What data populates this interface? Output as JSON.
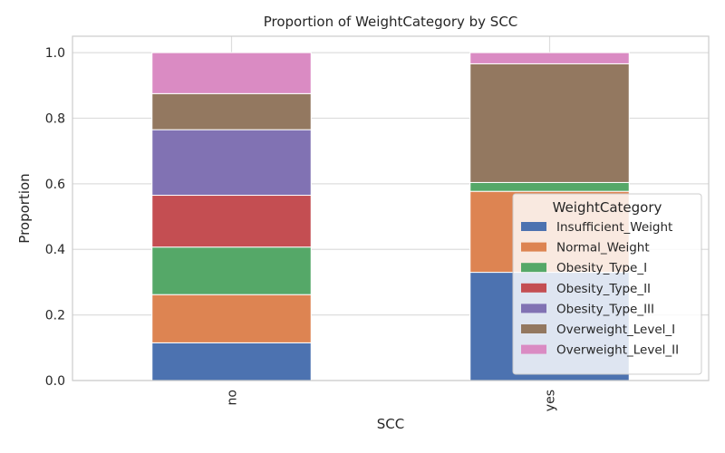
{
  "chart_data": {
    "type": "bar",
    "stacked": true,
    "title": "Proportion of WeightCategory by SCC",
    "xlabel": "SCC",
    "ylabel": "Proportion",
    "categories": [
      "no",
      "yes"
    ],
    "ylim": [
      0,
      1.05
    ],
    "yticks": [
      0.0,
      0.2,
      0.4,
      0.6,
      0.8,
      1.0
    ],
    "ytick_labels": [
      "0.0",
      "0.2",
      "0.4",
      "0.6",
      "0.8",
      "1.0"
    ],
    "grid": true,
    "legend": {
      "title": "WeightCategory",
      "placement": "lower-right"
    },
    "series": [
      {
        "name": "Insufficient_Weight",
        "color": "#4c72b0",
        "values": [
          0.115,
          0.33
        ]
      },
      {
        "name": "Normal_Weight",
        "color": "#dd8452",
        "values": [
          0.147,
          0.247
        ]
      },
      {
        "name": "Obesity_Type_I",
        "color": "#55a868",
        "values": [
          0.145,
          0.027
        ]
      },
      {
        "name": "Obesity_Type_II",
        "color": "#c44e52",
        "values": [
          0.158,
          0.0
        ]
      },
      {
        "name": "Obesity_Type_III",
        "color": "#8172b3",
        "values": [
          0.2,
          0.0
        ]
      },
      {
        "name": "Overweight_Level_I",
        "color": "#937860",
        "values": [
          0.11,
          0.362
        ]
      },
      {
        "name": "Overweight_Level_II",
        "color": "#da8bc3",
        "values": [
          0.125,
          0.034
        ]
      }
    ]
  }
}
